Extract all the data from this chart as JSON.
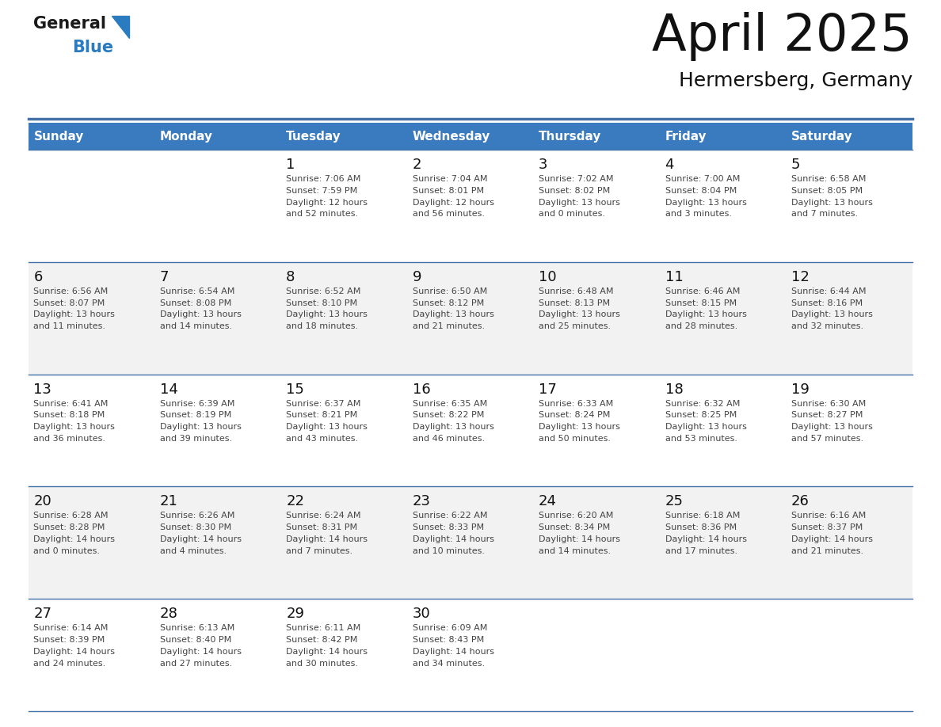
{
  "title": "April 2025",
  "subtitle": "Hermersberg, Germany",
  "header_color": "#3a7bbf",
  "header_text_color": "#ffffff",
  "bg_color": "#ffffff",
  "alt_row_color": "#f2f2f2",
  "days_of_week": [
    "Sunday",
    "Monday",
    "Tuesday",
    "Wednesday",
    "Thursday",
    "Friday",
    "Saturday"
  ],
  "weeks": [
    [
      {
        "day": "",
        "info": ""
      },
      {
        "day": "",
        "info": ""
      },
      {
        "day": "1",
        "info": "Sunrise: 7:06 AM\nSunset: 7:59 PM\nDaylight: 12 hours\nand 52 minutes."
      },
      {
        "day": "2",
        "info": "Sunrise: 7:04 AM\nSunset: 8:01 PM\nDaylight: 12 hours\nand 56 minutes."
      },
      {
        "day": "3",
        "info": "Sunrise: 7:02 AM\nSunset: 8:02 PM\nDaylight: 13 hours\nand 0 minutes."
      },
      {
        "day": "4",
        "info": "Sunrise: 7:00 AM\nSunset: 8:04 PM\nDaylight: 13 hours\nand 3 minutes."
      },
      {
        "day": "5",
        "info": "Sunrise: 6:58 AM\nSunset: 8:05 PM\nDaylight: 13 hours\nand 7 minutes."
      }
    ],
    [
      {
        "day": "6",
        "info": "Sunrise: 6:56 AM\nSunset: 8:07 PM\nDaylight: 13 hours\nand 11 minutes."
      },
      {
        "day": "7",
        "info": "Sunrise: 6:54 AM\nSunset: 8:08 PM\nDaylight: 13 hours\nand 14 minutes."
      },
      {
        "day": "8",
        "info": "Sunrise: 6:52 AM\nSunset: 8:10 PM\nDaylight: 13 hours\nand 18 minutes."
      },
      {
        "day": "9",
        "info": "Sunrise: 6:50 AM\nSunset: 8:12 PM\nDaylight: 13 hours\nand 21 minutes."
      },
      {
        "day": "10",
        "info": "Sunrise: 6:48 AM\nSunset: 8:13 PM\nDaylight: 13 hours\nand 25 minutes."
      },
      {
        "day": "11",
        "info": "Sunrise: 6:46 AM\nSunset: 8:15 PM\nDaylight: 13 hours\nand 28 minutes."
      },
      {
        "day": "12",
        "info": "Sunrise: 6:44 AM\nSunset: 8:16 PM\nDaylight: 13 hours\nand 32 minutes."
      }
    ],
    [
      {
        "day": "13",
        "info": "Sunrise: 6:41 AM\nSunset: 8:18 PM\nDaylight: 13 hours\nand 36 minutes."
      },
      {
        "day": "14",
        "info": "Sunrise: 6:39 AM\nSunset: 8:19 PM\nDaylight: 13 hours\nand 39 minutes."
      },
      {
        "day": "15",
        "info": "Sunrise: 6:37 AM\nSunset: 8:21 PM\nDaylight: 13 hours\nand 43 minutes."
      },
      {
        "day": "16",
        "info": "Sunrise: 6:35 AM\nSunset: 8:22 PM\nDaylight: 13 hours\nand 46 minutes."
      },
      {
        "day": "17",
        "info": "Sunrise: 6:33 AM\nSunset: 8:24 PM\nDaylight: 13 hours\nand 50 minutes."
      },
      {
        "day": "18",
        "info": "Sunrise: 6:32 AM\nSunset: 8:25 PM\nDaylight: 13 hours\nand 53 minutes."
      },
      {
        "day": "19",
        "info": "Sunrise: 6:30 AM\nSunset: 8:27 PM\nDaylight: 13 hours\nand 57 minutes."
      }
    ],
    [
      {
        "day": "20",
        "info": "Sunrise: 6:28 AM\nSunset: 8:28 PM\nDaylight: 14 hours\nand 0 minutes."
      },
      {
        "day": "21",
        "info": "Sunrise: 6:26 AM\nSunset: 8:30 PM\nDaylight: 14 hours\nand 4 minutes."
      },
      {
        "day": "22",
        "info": "Sunrise: 6:24 AM\nSunset: 8:31 PM\nDaylight: 14 hours\nand 7 minutes."
      },
      {
        "day": "23",
        "info": "Sunrise: 6:22 AM\nSunset: 8:33 PM\nDaylight: 14 hours\nand 10 minutes."
      },
      {
        "day": "24",
        "info": "Sunrise: 6:20 AM\nSunset: 8:34 PM\nDaylight: 14 hours\nand 14 minutes."
      },
      {
        "day": "25",
        "info": "Sunrise: 6:18 AM\nSunset: 8:36 PM\nDaylight: 14 hours\nand 17 minutes."
      },
      {
        "day": "26",
        "info": "Sunrise: 6:16 AM\nSunset: 8:37 PM\nDaylight: 14 hours\nand 21 minutes."
      }
    ],
    [
      {
        "day": "27",
        "info": "Sunrise: 6:14 AM\nSunset: 8:39 PM\nDaylight: 14 hours\nand 24 minutes."
      },
      {
        "day": "28",
        "info": "Sunrise: 6:13 AM\nSunset: 8:40 PM\nDaylight: 14 hours\nand 27 minutes."
      },
      {
        "day": "29",
        "info": "Sunrise: 6:11 AM\nSunset: 8:42 PM\nDaylight: 14 hours\nand 30 minutes."
      },
      {
        "day": "30",
        "info": "Sunrise: 6:09 AM\nSunset: 8:43 PM\nDaylight: 14 hours\nand 34 minutes."
      },
      {
        "day": "",
        "info": ""
      },
      {
        "day": "",
        "info": ""
      },
      {
        "day": "",
        "info": ""
      }
    ]
  ],
  "logo_text_general": "General",
  "logo_text_blue": "Blue",
  "logo_color_general": "#1a1a1a",
  "logo_color_blue": "#2a7bbf",
  "logo_triangle_color": "#2a7bbf",
  "divider_color": "#4472a8",
  "cell_text_color": "#444444",
  "cell_day_color": "#111111",
  "fig_width": 11.88,
  "fig_height": 9.18,
  "dpi": 100
}
